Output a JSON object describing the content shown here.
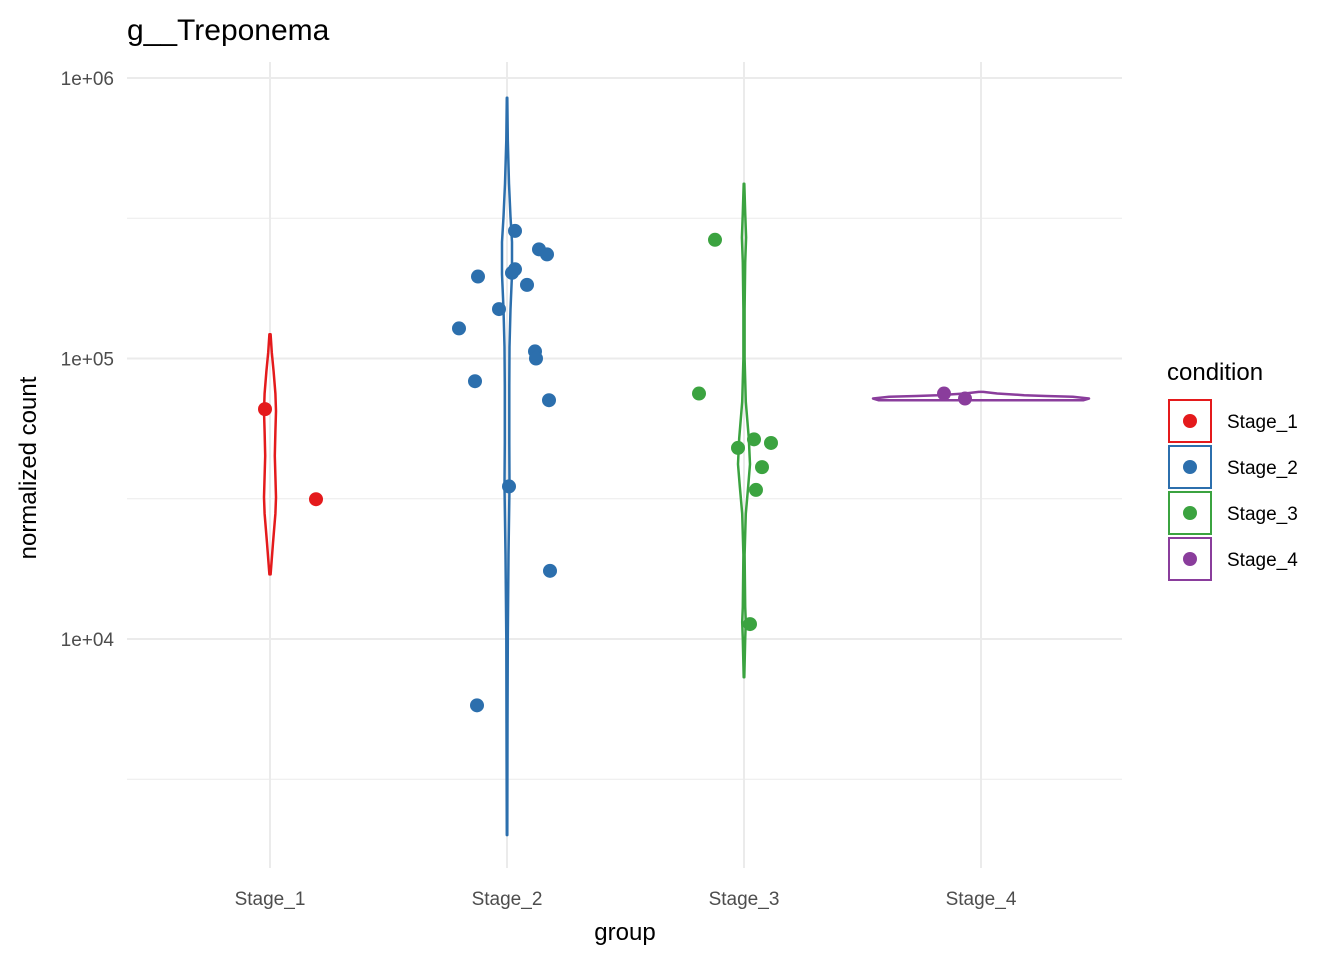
{
  "chart_data": {
    "type": "violin",
    "title": "g__Treponema",
    "xlabel": "group",
    "ylabel": "normalized count",
    "y_scale": "log10",
    "ylim": [
      1800,
      1200000
    ],
    "y_ticks": [
      {
        "value": 10000,
        "label": "1e+04"
      },
      {
        "value": 100000,
        "label": "1e+05"
      },
      {
        "value": 1000000,
        "label": "1e+06"
      }
    ],
    "grid": true,
    "categories": [
      "Stage_1",
      "Stage_2",
      "Stage_3",
      "Stage_4"
    ],
    "legend": {
      "title": "condition",
      "position": "right",
      "entries": [
        "Stage_1",
        "Stage_2",
        "Stage_3",
        "Stage_4"
      ]
    },
    "series": [
      {
        "name": "Stage_1",
        "color": "#e41a1c",
        "violin": {
          "min": 17000,
          "max": 122000,
          "profile": [
            [
              17000,
              0.1
            ],
            [
              22000,
              0.5
            ],
            [
              28000,
              0.9
            ],
            [
              32000,
              1.0
            ],
            [
              38000,
              0.9
            ],
            [
              45000,
              0.8
            ],
            [
              55000,
              0.9
            ],
            [
              65000,
              1.0
            ],
            [
              75000,
              0.9
            ],
            [
              90000,
              0.6
            ],
            [
              105000,
              0.3
            ],
            [
              122000,
              0.1
            ]
          ]
        },
        "points": [
          {
            "x": "Stage_1",
            "y": 66000
          },
          {
            "x": "Stage_1",
            "y": 31500
          }
        ]
      },
      {
        "name": "Stage_2",
        "color": "#2c6fad",
        "violin": {
          "min": 2000,
          "max": 850000,
          "profile": [
            [
              2000,
              0.05
            ],
            [
              5000,
              0.1
            ],
            [
              10000,
              0.15
            ],
            [
              20000,
              0.3
            ],
            [
              35000,
              0.5
            ],
            [
              50000,
              0.45
            ],
            [
              80000,
              0.45
            ],
            [
              110000,
              0.5
            ],
            [
              150000,
              0.7
            ],
            [
              200000,
              1.0
            ],
            [
              260000,
              1.0
            ],
            [
              320000,
              0.7
            ],
            [
              420000,
              0.4
            ],
            [
              600000,
              0.15
            ],
            [
              850000,
              0.05
            ]
          ]
        },
        "points": [
          {
            "x": "Stage_2",
            "y": 285000
          },
          {
            "x": "Stage_2",
            "y": 245000
          },
          {
            "x": "Stage_2",
            "y": 235000
          },
          {
            "x": "Stage_2",
            "y": 208000
          },
          {
            "x": "Stage_2",
            "y": 202000
          },
          {
            "x": "Stage_2",
            "y": 196000
          },
          {
            "x": "Stage_2",
            "y": 183000
          },
          {
            "x": "Stage_2",
            "y": 150000
          },
          {
            "x": "Stage_2",
            "y": 128000
          },
          {
            "x": "Stage_2",
            "y": 106000
          },
          {
            "x": "Stage_2",
            "y": 100000
          },
          {
            "x": "Stage_2",
            "y": 83000
          },
          {
            "x": "Stage_2",
            "y": 71000
          },
          {
            "x": "Stage_2",
            "y": 35000
          },
          {
            "x": "Stage_2",
            "y": 17500
          },
          {
            "x": "Stage_2",
            "y": 5800
          }
        ]
      },
      {
        "name": "Stage_3",
        "color": "#3ba340",
        "violin": {
          "min": 7300,
          "max": 420000,
          "profile": [
            [
              7300,
              0.05
            ],
            [
              10000,
              0.2
            ],
            [
              11500,
              0.3
            ],
            [
              13000,
              0.2
            ],
            [
              20000,
              0.1
            ],
            [
              28000,
              0.3
            ],
            [
              35000,
              0.7
            ],
            [
              42000,
              1.0
            ],
            [
              52000,
              0.8
            ],
            [
              70000,
              0.3
            ],
            [
              100000,
              0.1
            ],
            [
              150000,
              0.1
            ],
            [
              220000,
              0.2
            ],
            [
              270000,
              0.35
            ],
            [
              330000,
              0.2
            ],
            [
              420000,
              0.05
            ]
          ]
        },
        "points": [
          {
            "x": "Stage_3",
            "y": 265000
          },
          {
            "x": "Stage_3",
            "y": 75000
          },
          {
            "x": "Stage_3",
            "y": 51500
          },
          {
            "x": "Stage_3",
            "y": 50000
          },
          {
            "x": "Stage_3",
            "y": 48000
          },
          {
            "x": "Stage_3",
            "y": 41000
          },
          {
            "x": "Stage_3",
            "y": 34000
          },
          {
            "x": "Stage_3",
            "y": 11300
          }
        ]
      },
      {
        "name": "Stage_4",
        "color": "#8a3d9c",
        "violin": {
          "min": 71000,
          "max": 76000,
          "profile": [
            [
              71000,
              0.95
            ],
            [
              72000,
              1.0
            ],
            [
              73000,
              0.85
            ],
            [
              73500,
              0.6
            ],
            [
              74000,
              0.4
            ],
            [
              75000,
              0.15
            ],
            [
              76000,
              0.02
            ]
          ]
        },
        "points": [
          {
            "x": "Stage_4",
            "y": 75000
          },
          {
            "x": "Stage_4",
            "y": 72000
          }
        ]
      }
    ]
  }
}
